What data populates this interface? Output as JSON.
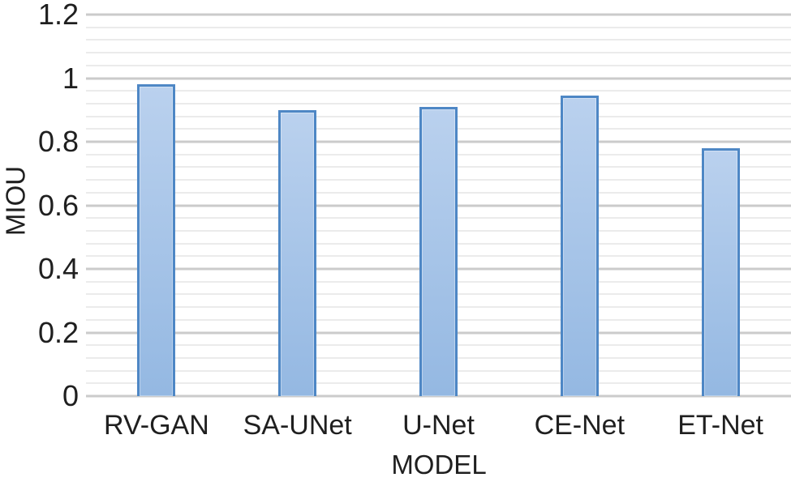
{
  "chart_data": {
    "type": "bar",
    "categories": [
      "RV-GAN",
      "SA-UNet",
      "U-Net",
      "CE-Net",
      "ET-Net"
    ],
    "values": [
      0.98,
      0.9,
      0.91,
      0.945,
      0.78
    ],
    "title": "",
    "xlabel": "MODEL",
    "ylabel": "MIOU",
    "ylim": [
      0,
      1.2
    ],
    "ytick_step": 0.2,
    "minor_tick_step": 0.04,
    "ytick_labels": [
      "0",
      "0.2",
      "0.4",
      "0.6",
      "0.8",
      "1",
      "1.2"
    ],
    "grid": true,
    "legend": "none",
    "colors": {
      "bar_fill_top": "#bad1ee",
      "bar_fill_bottom": "#94b8e2",
      "bar_border": "#4e87c5",
      "major_grid": "#cbcbcb",
      "minor_grid": "#ebebeb",
      "text": "#1f1f1f",
      "background": "#ffffff"
    }
  }
}
